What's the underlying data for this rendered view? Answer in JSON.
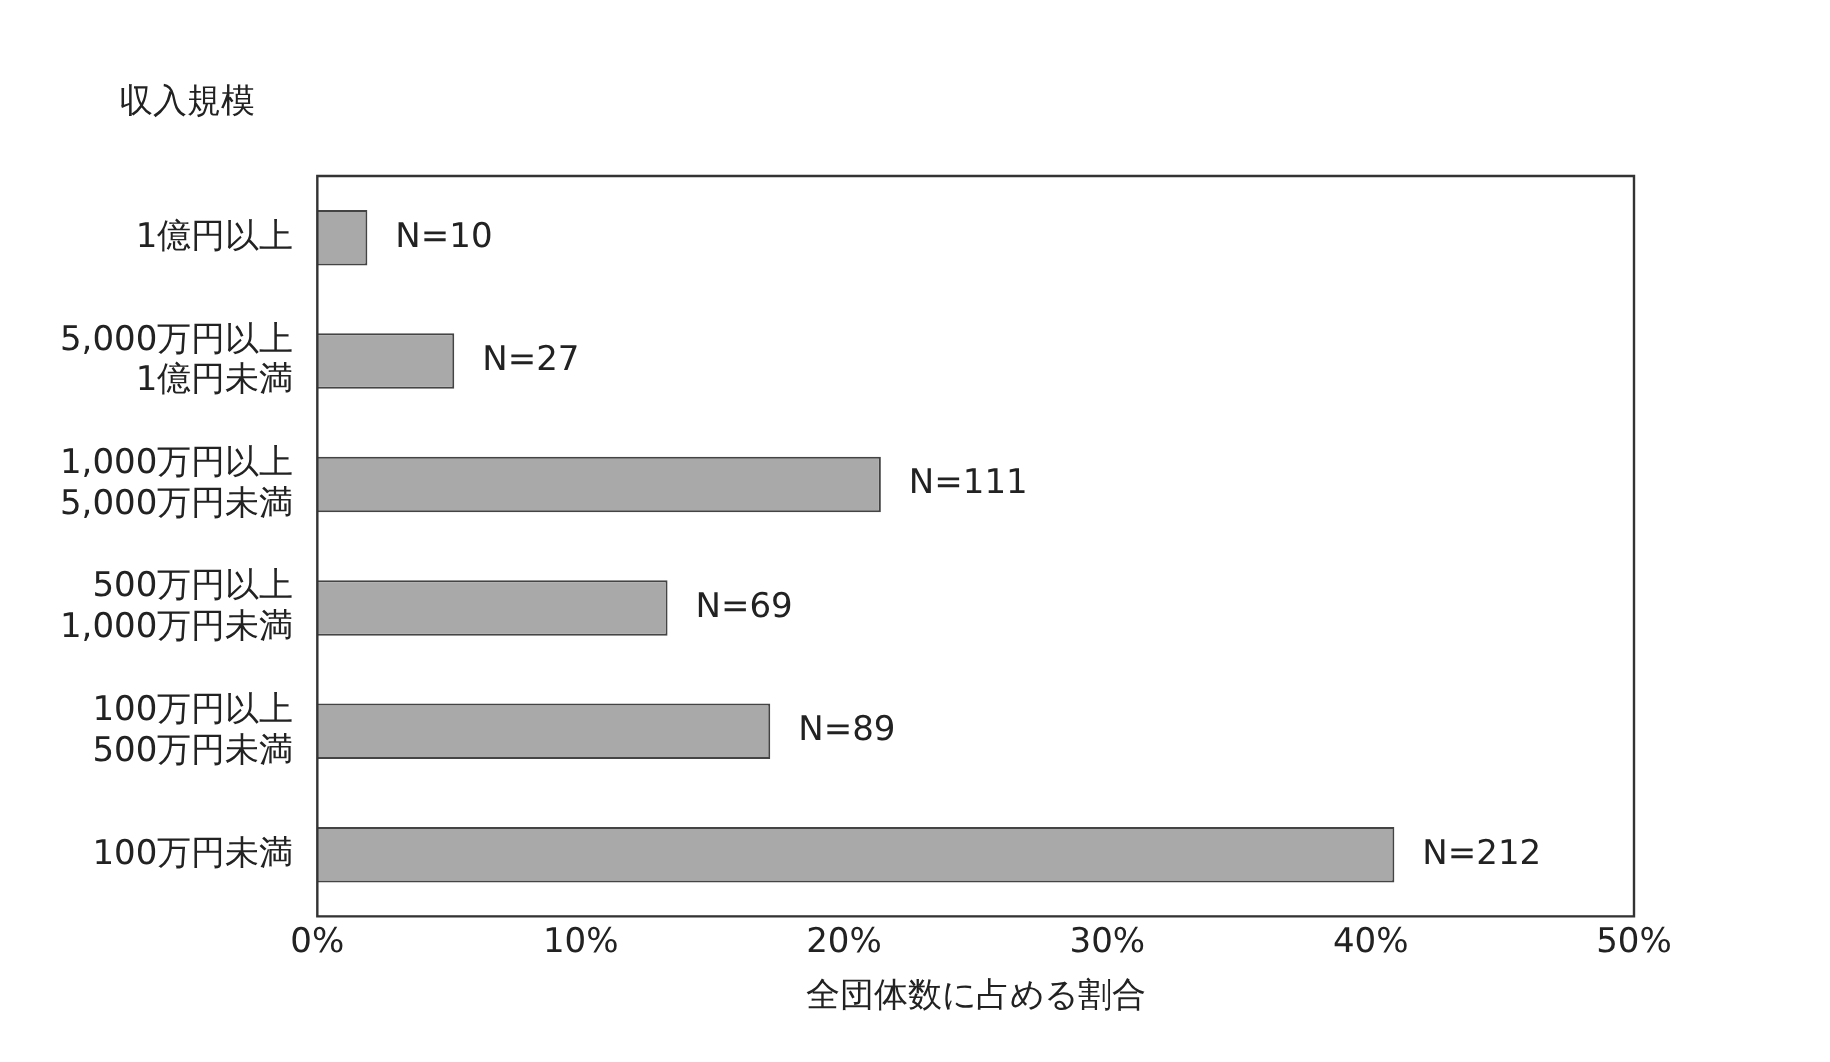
{
  "chart_data": {
    "type": "bar",
    "orientation": "horizontal",
    "ylabel": "収入規模",
    "xlabel": "全団体数に占める割合",
    "categories": [
      "1億円以上",
      "5,000万円以上\n1億円未満",
      "1,000万円以上\n5,000万円未満",
      "500万円以上\n1,000万円未満",
      "100万円以上\n500万円未満",
      "100万円未満"
    ],
    "values": [
      1.9,
      5.2,
      21.4,
      13.3,
      17.2,
      40.9
    ],
    "annotations": [
      {
        "text": "N=10",
        "x": 1.9,
        "y": "1億円以上"
      },
      {
        "text": "N=27",
        "x": 5.2,
        "y": "5,000万円以上\n1億円未満"
      },
      {
        "text": "N=111",
        "x": 21.4,
        "y": "1,000万円以上\n5,000万円未満"
      },
      {
        "text": "N=69",
        "x": 13.3,
        "y": "500万円以上\n1,000万円未満"
      },
      {
        "text": "N=89",
        "x": 17.2,
        "y": "100万円以上\n500万円未満"
      },
      {
        "text": "N=212",
        "x": 40.9,
        "y": "100万円未満"
      }
    ],
    "color": "#a9a9a9",
    "xlim": [
      0,
      50
    ],
    "xticks": [
      {
        "value": 0,
        "label": "0%"
      },
      {
        "value": 10,
        "label": "10%"
      },
      {
        "value": 20,
        "label": "20%"
      },
      {
        "value": 30,
        "label": "30%"
      },
      {
        "value": 40,
        "label": "40%"
      },
      {
        "value": 50,
        "label": "50%"
      }
    ],
    "grid": false,
    "legend": false
  }
}
